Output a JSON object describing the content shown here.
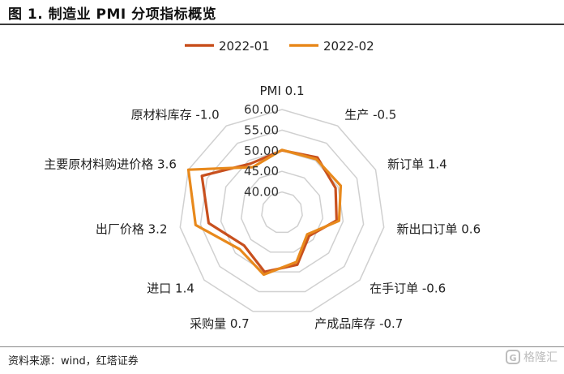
{
  "header": {
    "title": "图 1. 制造业 PMI 分项指标概览"
  },
  "footer": {
    "source": "资料来源：wind，红塔证券",
    "watermark": "格隆汇",
    "watermark_logo": "G"
  },
  "colors": {
    "series_2022_01": "#C8501E",
    "series_2022_02": "#E8891C",
    "grid": "#d0d0d0"
  },
  "chart_data": {
    "type": "radar",
    "title": "",
    "categories": [
      "PMI 0.1",
      "生产 -0.5",
      "新订单 1.4",
      "新出口订单 0.6",
      "在手订单 -0.6",
      "产成品库存 -0.7",
      "采购量 0.7",
      "进口 1.4",
      "出厂价格 3.2",
      "主要原材料购进价格 3.6",
      "原材料库存 -1.0"
    ],
    "rlim": [
      35,
      60
    ],
    "rticks": [
      "40.00",
      "45.00",
      "50.00",
      "55.00",
      "60.00"
    ],
    "grid": true,
    "legend_position": "top",
    "series": [
      {
        "name": "2022-01",
        "values": [
          50.1,
          50.9,
          49.3,
          48.4,
          43.7,
          48.2,
          50.0,
          47.2,
          53.0,
          56.4,
          49.1
        ]
      },
      {
        "name": "2022-02",
        "values": [
          50.2,
          50.4,
          50.7,
          49.0,
          43.1,
          47.5,
          50.7,
          48.6,
          56.2,
          60.0,
          48.1
        ]
      }
    ]
  }
}
